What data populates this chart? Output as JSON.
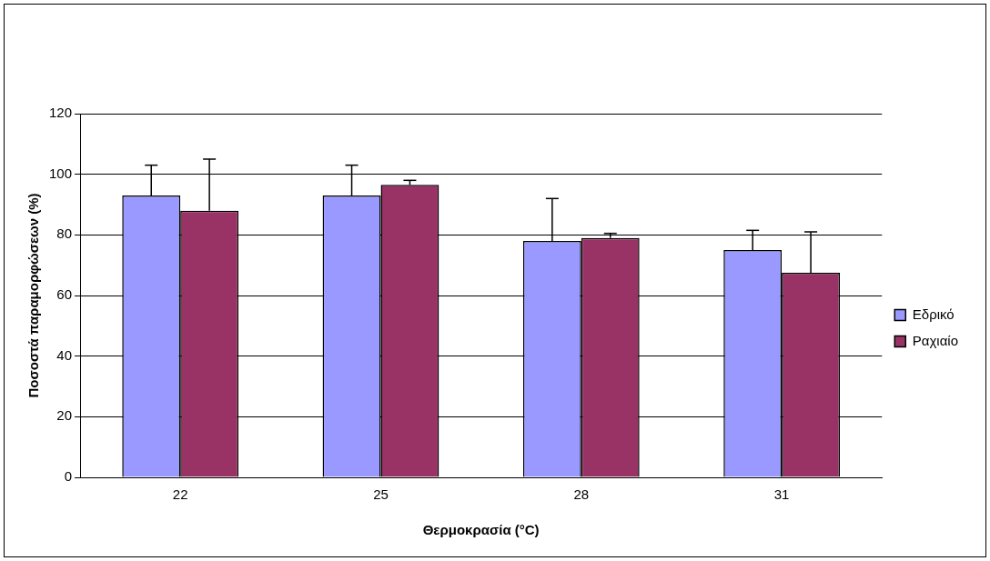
{
  "chart_data": {
    "type": "bar",
    "xlabel": "Θερμοκρασία (°C)",
    "ylabel": "Ποσοστά παραμορφώσεων (%)",
    "categories": [
      "22",
      "25",
      "28",
      "31"
    ],
    "series": [
      {
        "name": "Εδρικό",
        "color": "#9999ff",
        "values": [
          93,
          93,
          78,
          75
        ],
        "errors": [
          [
            93,
            103
          ],
          [
            93,
            103
          ],
          [
            78,
            92
          ],
          [
            75,
            81.5
          ]
        ]
      },
      {
        "name": "Ραχιαίο",
        "color": "#993366",
        "values": [
          88,
          96.5,
          79,
          67.5
        ],
        "errors": [
          [
            88,
            105
          ],
          [
            96.5,
            98
          ],
          [
            79,
            80.5
          ],
          [
            67.5,
            81
          ]
        ]
      }
    ],
    "ylim": [
      0,
      120
    ],
    "yticks": [
      0,
      20,
      40,
      60,
      80,
      100,
      120
    ],
    "grid": "y",
    "legend": "right"
  }
}
